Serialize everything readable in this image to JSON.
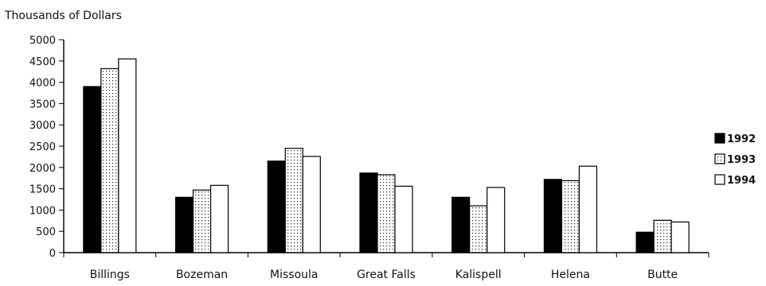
{
  "chart_data": {
    "type": "bar",
    "ylabel": "Thousands of Dollars",
    "xlabel": "",
    "title": "",
    "categories": [
      "Billings",
      "Bozeman",
      "Missoula",
      "Great Falls",
      "Kalispell",
      "Helena",
      "Butte"
    ],
    "series": [
      {
        "name": "1992",
        "values": [
          3900,
          1300,
          2150,
          1870,
          1300,
          1720,
          480
        ],
        "fill": "#000000",
        "pattern": "solid"
      },
      {
        "name": "1993",
        "values": [
          4320,
          1470,
          2450,
          1830,
          1100,
          1690,
          760
        ],
        "fill": "#ffffff",
        "pattern": "dotted"
      },
      {
        "name": "1994",
        "values": [
          4550,
          1580,
          2260,
          1560,
          1530,
          2030,
          720
        ],
        "fill": "#ffffff",
        "pattern": "plain"
      }
    ],
    "yticks": [
      0,
      500,
      1000,
      1500,
      2000,
      2500,
      3000,
      3500,
      4000,
      4500,
      5000
    ],
    "ylim": [
      0,
      5000
    ],
    "legend_position": "right",
    "grid": false
  }
}
